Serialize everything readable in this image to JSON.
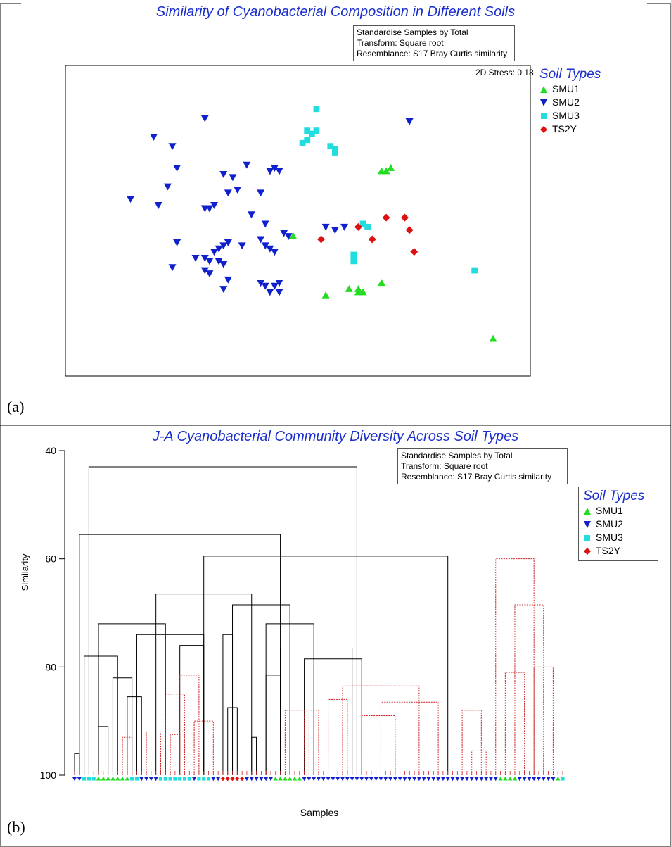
{
  "panels": {
    "a": {
      "label": "(a)"
    },
    "b": {
      "label": "(b)"
    }
  },
  "colors": {
    "SMU1": "#22dd22",
    "SMU2": "#1020cc",
    "SMU3": "#22dddd",
    "TS2Y": "#dd1111",
    "title": "#1a2fcc",
    "dendro_black": "#000000",
    "dendro_red": "#cc2222"
  },
  "chart_data": [
    {
      "type": "scatter",
      "title": "Similarity of Cyanobacterial Composition in Different Soils",
      "info": [
        "Standardise Samples by Total",
        "Transform: Square root",
        "Resemblance: S17 Bray Curtis similarity"
      ],
      "annotation": "2D Stress: 0.18",
      "legend": {
        "title": "Soil Types",
        "placement": "right",
        "entries": [
          "SMU1",
          "SMU2",
          "SMU3",
          "TS2Y"
        ]
      },
      "xlim": [
        0,
        100
      ],
      "ylim": [
        0,
        100
      ],
      "grid": false,
      "series": [
        {
          "name": "SMU1",
          "marker": "triangle-up",
          "points": [
            [
              69,
              66
            ],
            [
              70,
              67
            ],
            [
              68,
              66
            ],
            [
              49,
              45
            ],
            [
              61,
              28
            ],
            [
              63,
              28
            ],
            [
              64,
              27
            ],
            [
              63,
              27
            ],
            [
              68,
              30
            ],
            [
              56,
              26
            ],
            [
              92,
              12
            ]
          ]
        },
        {
          "name": "SMU2",
          "marker": "triangle-down",
          "points": [
            [
              30,
              83
            ],
            [
              74,
              82
            ],
            [
              19,
              77
            ],
            [
              23,
              74
            ],
            [
              24,
              67
            ],
            [
              34,
              65
            ],
            [
              36,
              64
            ],
            [
              39,
              68
            ],
            [
              44,
              66
            ],
            [
              45,
              67
            ],
            [
              46,
              66
            ],
            [
              22,
              61
            ],
            [
              14,
              57
            ],
            [
              20,
              55
            ],
            [
              35,
              59
            ],
            [
              37,
              60
            ],
            [
              42,
              59
            ],
            [
              32,
              55
            ],
            [
              30,
              54
            ],
            [
              31,
              54
            ],
            [
              40,
              52
            ],
            [
              43,
              49
            ],
            [
              47,
              46
            ],
            [
              48,
              45
            ],
            [
              56,
              48
            ],
            [
              58,
              47
            ],
            [
              60,
              48
            ],
            [
              24,
              43
            ],
            [
              33,
              41
            ],
            [
              34,
              42
            ],
            [
              35,
              43
            ],
            [
              42,
              44
            ],
            [
              43,
              42
            ],
            [
              44,
              41
            ],
            [
              45,
              40
            ],
            [
              38,
              42
            ],
            [
              32,
              40
            ],
            [
              28,
              38
            ],
            [
              30,
              38
            ],
            [
              31,
              37
            ],
            [
              33,
              37
            ],
            [
              34,
              36
            ],
            [
              23,
              35
            ],
            [
              30,
              34
            ],
            [
              31,
              33
            ],
            [
              35,
              31
            ],
            [
              42,
              30
            ],
            [
              43,
              29
            ],
            [
              45,
              29
            ],
            [
              46,
              30
            ],
            [
              44,
              27
            ],
            [
              46,
              27
            ],
            [
              34,
              28
            ]
          ]
        },
        {
          "name": "SMU3",
          "marker": "square",
          "points": [
            [
              54,
              86
            ],
            [
              52,
              79
            ],
            [
              52,
              76
            ],
            [
              51,
              75
            ],
            [
              53,
              78
            ],
            [
              54,
              79
            ],
            [
              57,
              74
            ],
            [
              58,
              73
            ],
            [
              58,
              72
            ],
            [
              64,
              49
            ],
            [
              65,
              48
            ],
            [
              62,
              39
            ],
            [
              62,
              37
            ],
            [
              88,
              34
            ]
          ]
        },
        {
          "name": "TS2Y",
          "marker": "diamond",
          "points": [
            [
              69,
              51
            ],
            [
              73,
              51
            ],
            [
              63,
              48
            ],
            [
              66,
              44
            ],
            [
              74,
              47
            ],
            [
              55,
              44
            ],
            [
              75,
              40
            ]
          ]
        }
      ]
    },
    {
      "type": "dendrogram",
      "title": "J-A Cyanobacterial Community Diversity Across Soil Types",
      "info": [
        "Standardise Samples by Total",
        "Transform: Square root",
        "Resemblance: S17 Bray Curtis similarity"
      ],
      "xlabel": "Samples",
      "ylabel": "Similarity",
      "ylim": [
        100,
        40
      ],
      "yticks": [
        40,
        60,
        80,
        100
      ],
      "legend": {
        "title": "Soil Types",
        "placement": "right",
        "entries": [
          "SMU1",
          "SMU2",
          "SMU3",
          "TS2Y"
        ]
      },
      "leaves": [
        "SMU2",
        "SMU2",
        "SMU3",
        "SMU3",
        "SMU3",
        "SMU1",
        "SMU1",
        "SMU1",
        "SMU1",
        "SMU1",
        "SMU1",
        "SMU1",
        "SMU3",
        "SMU3",
        "SMU2",
        "SMU2",
        "SMU2",
        "SMU2",
        "SMU3",
        "SMU3",
        "SMU3",
        "SMU3",
        "SMU3",
        "SMU3",
        "SMU3",
        "SMU2",
        "SMU3",
        "SMU3",
        "SMU3",
        "SMU2",
        "SMU2",
        "TS2Y",
        "TS2Y",
        "TS2Y",
        "TS2Y",
        "TS2Y",
        "SMU2",
        "SMU2",
        "SMU2",
        "SMU2",
        "SMU2",
        "SMU2",
        "SMU1",
        "SMU1",
        "SMU1",
        "SMU1",
        "SMU1",
        "SMU1",
        "SMU2",
        "SMU2",
        "SMU2",
        "SMU2",
        "SMU2",
        "SMU2",
        "SMU2",
        "SMU2",
        "SMU2",
        "SMU2",
        "SMU2",
        "SMU2",
        "SMU2",
        "SMU2",
        "SMU2",
        "SMU2",
        "SMU2",
        "SMU2",
        "SMU2",
        "SMU2",
        "SMU2",
        "SMU2",
        "SMU2",
        "SMU2",
        "SMU2",
        "SMU2",
        "SMU2",
        "SMU2",
        "SMU2",
        "SMU2",
        "SMU2",
        "SMU2",
        "SMU2",
        "SMU2",
        "SMU2",
        "SMU2",
        "SMU2",
        "SMU2",
        "SMU2",
        "SMU2",
        "SMU2",
        "SMU1",
        "SMU1",
        "SMU1",
        "SMU1",
        "SMU2",
        "SMU2",
        "SMU2",
        "SMU2",
        "SMU2",
        "SMU2",
        "SMU2",
        "SMU2",
        "SMU1",
        "SMU3"
      ],
      "merges": [
        {
          "x": [
            3,
            59
          ],
          "sim": 43.0,
          "color": "black"
        },
        {
          "x": [
            1,
            43
          ],
          "sim": 55.5,
          "color": "black"
        },
        {
          "x": [
            27,
            78
          ],
          "sim": 59.5,
          "color": "black"
        },
        {
          "x": [
            17,
            37
          ],
          "sim": 66.5,
          "color": "black"
        },
        {
          "x": [
            33,
            45
          ],
          "sim": 68.5,
          "color": "black"
        },
        {
          "x": [
            5,
            19
          ],
          "sim": 72.0,
          "color": "black"
        },
        {
          "x": [
            40,
            50
          ],
          "sim": 72.0,
          "color": "black"
        },
        {
          "x": [
            13,
            27
          ],
          "sim": 74.0,
          "color": "black"
        },
        {
          "x": [
            2,
            9
          ],
          "sim": 78.0,
          "color": "black"
        },
        {
          "x": [
            43,
            58
          ],
          "sim": 76.5,
          "color": "black"
        },
        {
          "x": [
            8,
            12
          ],
          "sim": 82.0,
          "color": "black"
        },
        {
          "x": [
            48,
            60
          ],
          "sim": 78.5,
          "color": "black"
        },
        {
          "x": [
            11,
            14
          ],
          "sim": 85.5,
          "color": "black"
        },
        {
          "x": [
            40,
            43
          ],
          "sim": 81.5,
          "color": "black"
        },
        {
          "x": [
            5,
            7
          ],
          "sim": 91.0,
          "color": "black"
        },
        {
          "x": [
            31,
            33
          ],
          "sim": 74.0,
          "color": "black"
        },
        {
          "x": [
            32,
            34
          ],
          "sim": 87.5,
          "color": "black"
        },
        {
          "x": [
            37,
            38
          ],
          "sim": 93.0,
          "color": "black"
        },
        {
          "x": [
            22,
            27
          ],
          "sim": 76.0,
          "color": "black"
        },
        {
          "x": [
            0,
            1
          ],
          "sim": 96.0,
          "color": "black"
        },
        {
          "x": [
            56,
            72
          ],
          "sim": 83.5,
          "color": "red"
        },
        {
          "x": [
            64,
            76
          ],
          "sim": 86.5,
          "color": "red"
        },
        {
          "x": [
            60,
            67
          ],
          "sim": 89.0,
          "color": "red"
        },
        {
          "x": [
            88,
            96
          ],
          "sim": 60.0,
          "color": "red"
        },
        {
          "x": [
            92,
            98
          ],
          "sim": 68.5,
          "color": "red"
        },
        {
          "x": [
            90,
            94
          ],
          "sim": 81.0,
          "color": "red"
        },
        {
          "x": [
            96,
            100
          ],
          "sim": 80.0,
          "color": "red"
        },
        {
          "x": [
            22,
            26
          ],
          "sim": 81.5,
          "color": "red"
        },
        {
          "x": [
            19,
            23
          ],
          "sim": 85.0,
          "color": "red"
        },
        {
          "x": [
            53,
            57
          ],
          "sim": 86.0,
          "color": "red"
        },
        {
          "x": [
            44,
            48
          ],
          "sim": 88.0,
          "color": "red"
        },
        {
          "x": [
            49,
            51
          ],
          "sim": 88.0,
          "color": "red"
        },
        {
          "x": [
            81,
            85
          ],
          "sim": 88.0,
          "color": "red"
        },
        {
          "x": [
            15,
            18
          ],
          "sim": 92.0,
          "color": "red"
        },
        {
          "x": [
            25,
            29
          ],
          "sim": 90.0,
          "color": "red"
        },
        {
          "x": [
            20,
            22
          ],
          "sim": 92.5,
          "color": "red"
        },
        {
          "x": [
            83,
            86
          ],
          "sim": 95.5,
          "color": "red"
        },
        {
          "x": [
            10,
            12
          ],
          "sim": 93.0,
          "color": "red"
        }
      ]
    }
  ]
}
